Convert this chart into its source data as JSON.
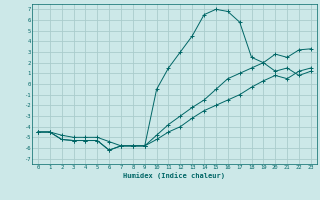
{
  "xlabel": "Humidex (Indice chaleur)",
  "bg_color": "#cce8e8",
  "grid_color": "#aacccc",
  "line_color": "#006666",
  "xlim": [
    -0.5,
    23.5
  ],
  "ylim": [
    -7.5,
    7.5
  ],
  "xticks": [
    0,
    1,
    2,
    3,
    4,
    5,
    6,
    7,
    8,
    9,
    10,
    11,
    12,
    13,
    14,
    15,
    16,
    17,
    18,
    19,
    20,
    21,
    22,
    23
  ],
  "yticks": [
    -7,
    -6,
    -5,
    -4,
    -3,
    -2,
    -1,
    0,
    1,
    2,
    3,
    4,
    5,
    6,
    7
  ],
  "line1_x": [
    0,
    1,
    2,
    3,
    4,
    5,
    6,
    7,
    8,
    9,
    10,
    11,
    12,
    13,
    14,
    15,
    16,
    17,
    18,
    19,
    20,
    21,
    22,
    23
  ],
  "line1_y": [
    -4.5,
    -4.5,
    -4.8,
    -5.0,
    -5.0,
    -5.0,
    -5.4,
    -5.8,
    -5.8,
    -5.8,
    -0.5,
    1.5,
    3.0,
    4.5,
    6.5,
    7.0,
    6.8,
    5.8,
    2.5,
    2.0,
    1.2,
    1.5,
    0.8,
    1.2
  ],
  "line2_x": [
    0,
    1,
    2,
    3,
    4,
    5,
    6,
    7,
    8,
    9,
    10,
    11,
    12,
    13,
    14,
    15,
    16,
    17,
    18,
    19,
    20,
    21,
    22,
    23
  ],
  "line2_y": [
    -4.5,
    -4.5,
    -5.2,
    -5.3,
    -5.3,
    -5.3,
    -6.2,
    -5.8,
    -5.8,
    -5.8,
    -4.8,
    -3.8,
    -3.0,
    -2.2,
    -1.5,
    -0.5,
    0.5,
    1.0,
    1.5,
    2.0,
    2.8,
    2.5,
    3.2,
    3.3
  ],
  "line3_x": [
    0,
    1,
    2,
    3,
    4,
    5,
    6,
    7,
    8,
    9,
    10,
    11,
    12,
    13,
    14,
    15,
    16,
    17,
    18,
    19,
    20,
    21,
    22,
    23
  ],
  "line3_y": [
    -4.5,
    -4.5,
    -5.2,
    -5.3,
    -5.3,
    -5.3,
    -6.2,
    -5.8,
    -5.8,
    -5.8,
    -5.2,
    -4.5,
    -4.0,
    -3.2,
    -2.5,
    -2.0,
    -1.5,
    -1.0,
    -0.3,
    0.3,
    0.8,
    0.5,
    1.2,
    1.5
  ]
}
